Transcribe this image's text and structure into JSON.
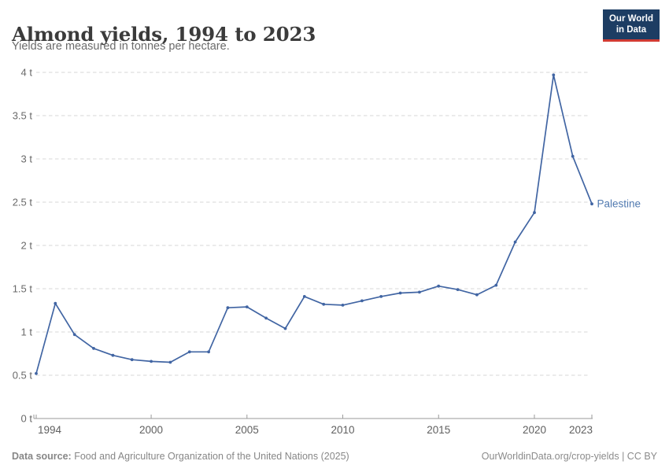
{
  "header": {
    "title": "Almond yields, 1994 to 2023",
    "subtitle": "Yields are measured in tonnes per hectare.",
    "logo": {
      "line1": "Our World",
      "line2": "in Data",
      "bg_color": "#1d3d63",
      "accent_color": "#d13b33"
    }
  },
  "chart_data": {
    "type": "line",
    "title": "Almond yields, 1994 to 2023",
    "subtitle": "Yields are measured in tonnes per hectare.",
    "unit": "tonnes per hectare",
    "x": [
      1994,
      1995,
      1996,
      1997,
      1998,
      1999,
      2000,
      2001,
      2002,
      2003,
      2004,
      2005,
      2006,
      2007,
      2008,
      2009,
      2010,
      2011,
      2012,
      2013,
      2014,
      2015,
      2016,
      2017,
      2018,
      2019,
      2020,
      2021,
      2022,
      2023
    ],
    "series": [
      {
        "name": "Palestine",
        "color": "#4165a3",
        "values": [
          0.52,
          1.33,
          0.97,
          0.81,
          0.73,
          0.68,
          0.66,
          0.65,
          0.77,
          0.77,
          1.28,
          1.29,
          1.16,
          1.04,
          1.41,
          1.32,
          1.31,
          1.36,
          1.41,
          1.45,
          1.46,
          1.53,
          1.49,
          1.43,
          1.54,
          2.04,
          2.38,
          3.97,
          3.03,
          2.48
        ]
      }
    ],
    "xlabel": "",
    "ylabel": "",
    "ylim": [
      0,
      4
    ],
    "yticks": [
      0,
      0.5,
      1,
      1.5,
      2,
      2.5,
      3,
      3.5,
      4
    ],
    "ytick_labels": [
      "0 t",
      "0.5 t",
      "1 t",
      "1.5 t",
      "2 t",
      "2.5 t",
      "3 t",
      "3.5 t",
      "4 t"
    ],
    "xticks": [
      1994,
      2000,
      2005,
      2010,
      2015,
      2020,
      2023
    ],
    "grid": "horizontal-dashed",
    "legend": "end-of-line-label",
    "colors": {
      "line": "#4165a3",
      "entity_label": "#517ab0",
      "gridline": "#d7d7d7",
      "axis": "#9a9a9a",
      "tick_label": "#5f5f5f"
    }
  },
  "footer": {
    "source_label": "Data source:",
    "source_text": " Food and Agriculture Organization of the United Nations (2025)",
    "link_text": "OurWorldinData.org/crop-yields | CC BY"
  }
}
